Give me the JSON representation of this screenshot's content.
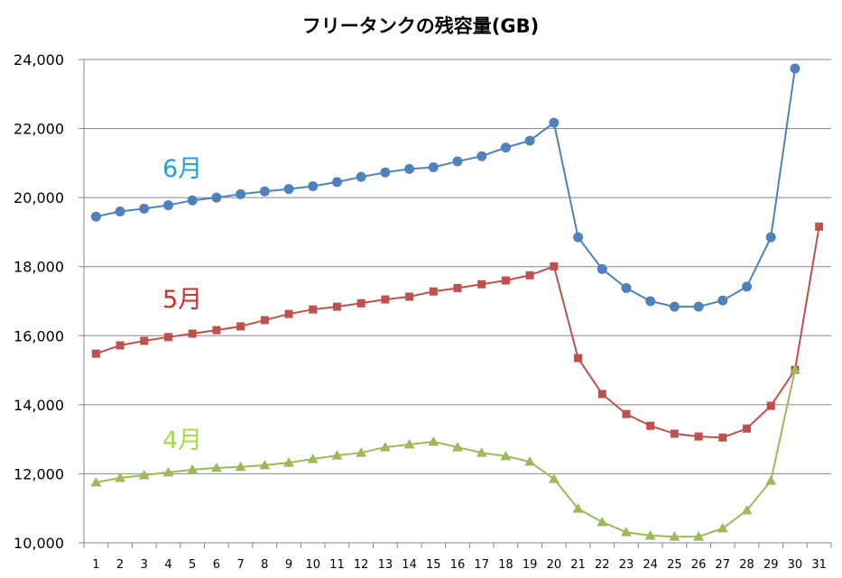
{
  "chart_data": {
    "type": "line",
    "title": "フリータンクの残容量(GB)",
    "xlabel": "",
    "ylabel": "",
    "ylim": [
      10000,
      24000
    ],
    "yticks": [
      10000,
      12000,
      14000,
      16000,
      18000,
      20000,
      22000,
      24000
    ],
    "ytick_labels": [
      "10,000",
      "12,000",
      "14,000",
      "16,000",
      "18,000",
      "20,000",
      "22,000",
      "24,000"
    ],
    "grid": true,
    "legend": "inline-labels",
    "categories": [
      "1",
      "2",
      "3",
      "4",
      "5",
      "6",
      "7",
      "8",
      "9",
      "10",
      "11",
      "12",
      "13",
      "14",
      "15",
      "16",
      "17",
      "18",
      "19",
      "20",
      "21",
      "22",
      "23",
      "24",
      "25",
      "26",
      "27",
      "28",
      "29",
      "30",
      "31"
    ],
    "series": [
      {
        "name": "6月",
        "color": "#4f81bd",
        "label_color": "#1fa0d8",
        "marker": "circle",
        "values": [
          19450,
          19600,
          19680,
          19780,
          19920,
          20000,
          20100,
          20180,
          20250,
          20330,
          20450,
          20600,
          20730,
          20830,
          20880,
          21050,
          21200,
          21450,
          21650,
          22170,
          18850,
          17930,
          17380,
          17000,
          16840,
          16840,
          17020,
          17420,
          18850,
          23740,
          null
        ]
      },
      {
        "name": "5月",
        "color": "#c0504d",
        "label_color": "#d42b2b",
        "marker": "square",
        "values": [
          15480,
          15720,
          15850,
          15960,
          16060,
          16160,
          16270,
          16450,
          16630,
          16760,
          16840,
          16940,
          17050,
          17130,
          17280,
          17380,
          17490,
          17600,
          17750,
          18010,
          15350,
          14310,
          13730,
          13390,
          13160,
          13080,
          13050,
          13310,
          13970,
          15010,
          19160
        ]
      },
      {
        "name": "4月",
        "color": "#9bbb59",
        "label_color": "#a8d94a",
        "marker": "triangle",
        "values": [
          11750,
          11880,
          11960,
          12040,
          12120,
          12170,
          12200,
          12250,
          12320,
          12430,
          12530,
          12610,
          12770,
          12850,
          12930,
          12770,
          12610,
          12510,
          12350,
          11850,
          10990,
          10600,
          10310,
          10210,
          10180,
          10180,
          10420,
          10940,
          11800,
          15010,
          null
        ]
      }
    ],
    "annotations": [
      {
        "series": "6月",
        "text": "6月"
      },
      {
        "series": "5月",
        "text": "5月"
      },
      {
        "series": "4月",
        "text": "4月"
      }
    ]
  }
}
